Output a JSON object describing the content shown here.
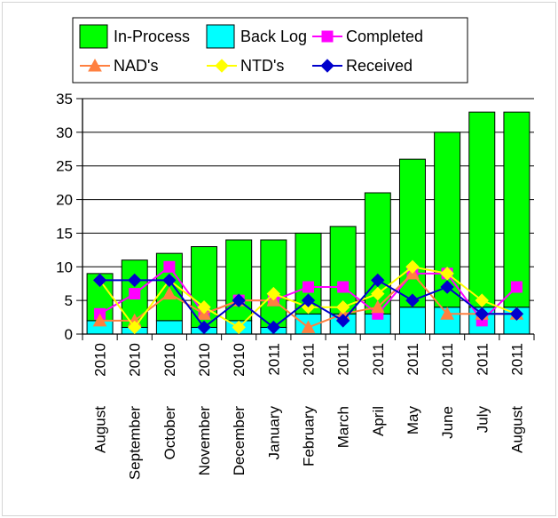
{
  "chart_data": {
    "type": "bar",
    "categories": [
      [
        "August",
        "2010"
      ],
      [
        "September",
        "2010"
      ],
      [
        "October",
        "2010"
      ],
      [
        "November",
        "2010"
      ],
      [
        "December",
        "2010"
      ],
      [
        "January",
        "2011"
      ],
      [
        "February",
        "2011"
      ],
      [
        "March",
        "2011"
      ],
      [
        "April",
        "2011"
      ],
      [
        "May",
        "2011"
      ],
      [
        "June",
        "2011"
      ],
      [
        "July",
        "2011"
      ],
      [
        "August",
        "2011"
      ]
    ],
    "ylim": [
      0,
      35
    ],
    "yticks": [
      0,
      5,
      10,
      15,
      20,
      25,
      30,
      35
    ],
    "grid": true,
    "legend_position": "top",
    "stacked_bars": [
      {
        "name": "Back Log",
        "color": "#00ffff",
        "values": [
          2,
          1,
          2,
          1,
          2,
          1,
          3,
          3,
          3,
          4,
          4,
          4,
          4
        ]
      },
      {
        "name": "In-Process",
        "color": "#00ff00",
        "values": [
          7,
          10,
          10,
          12,
          12,
          13,
          12,
          13,
          18,
          22,
          26,
          29,
          29
        ]
      }
    ],
    "series": [
      {
        "name": "Completed",
        "color": "#ff00ff",
        "marker": "square",
        "values": [
          3,
          6,
          10,
          3,
          5,
          5,
          7,
          7,
          3,
          9,
          9,
          2,
          7
        ]
      },
      {
        "name": "NAD's",
        "color": "#ff8040",
        "marker": "triangle",
        "values": [
          2,
          2,
          6,
          3,
          5,
          5,
          1,
          3,
          4,
          9,
          3,
          3,
          3
        ]
      },
      {
        "name": "NTD's",
        "color": "#ffff00",
        "marker": "diamond",
        "values": [
          8,
          1,
          8,
          4,
          1,
          6,
          4,
          4,
          6,
          10,
          9,
          5,
          3
        ]
      },
      {
        "name": "Received",
        "color": "#0000cc",
        "marker": "diamond",
        "values": [
          8,
          8,
          8,
          1,
          5,
          1,
          5,
          2,
          8,
          5,
          7,
          3,
          3
        ]
      }
    ],
    "legend": [
      {
        "label": "In-Process",
        "color": "#00ff00",
        "kind": "box"
      },
      {
        "label": "Back Log",
        "color": "#00ffff",
        "kind": "box"
      },
      {
        "label": "Completed",
        "color": "#ff00ff",
        "kind": "square"
      },
      {
        "label": "NAD's",
        "color": "#ff8040",
        "kind": "triangle"
      },
      {
        "label": "NTD's",
        "color": "#ffff00",
        "kind": "diamond"
      },
      {
        "label": "Received",
        "color": "#0000cc",
        "kind": "diamond"
      }
    ]
  }
}
